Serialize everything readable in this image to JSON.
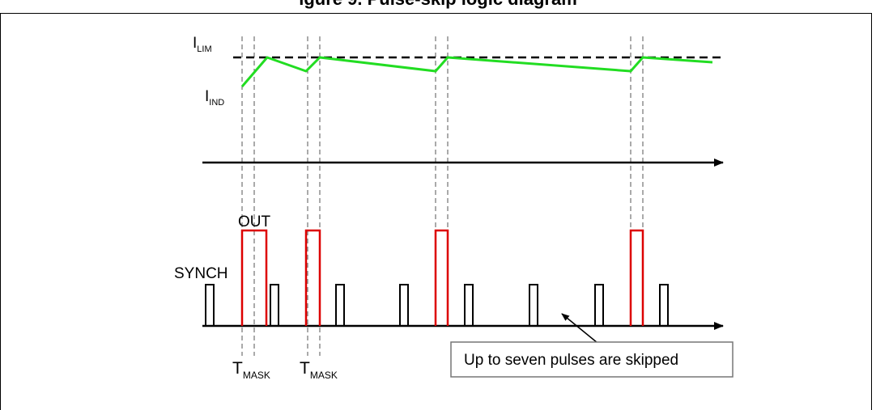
{
  "figure": {
    "caption": "igure 9. Pulse-skip logic diagram"
  },
  "labels": {
    "ilim_main": "I",
    "ilim_sub": "LIM",
    "iind_main": "I",
    "iind_sub": "IND",
    "out": "OUT",
    "synch": "SYNCH",
    "tmask_main": "T",
    "tmask_sub": "MASK",
    "callout": "Up to seven pulses are skipped"
  },
  "colors": {
    "inductor_current": "#22dd22",
    "out_pulse": "#dd0000",
    "synch_pulse": "#000000",
    "reference": "#000000"
  }
}
